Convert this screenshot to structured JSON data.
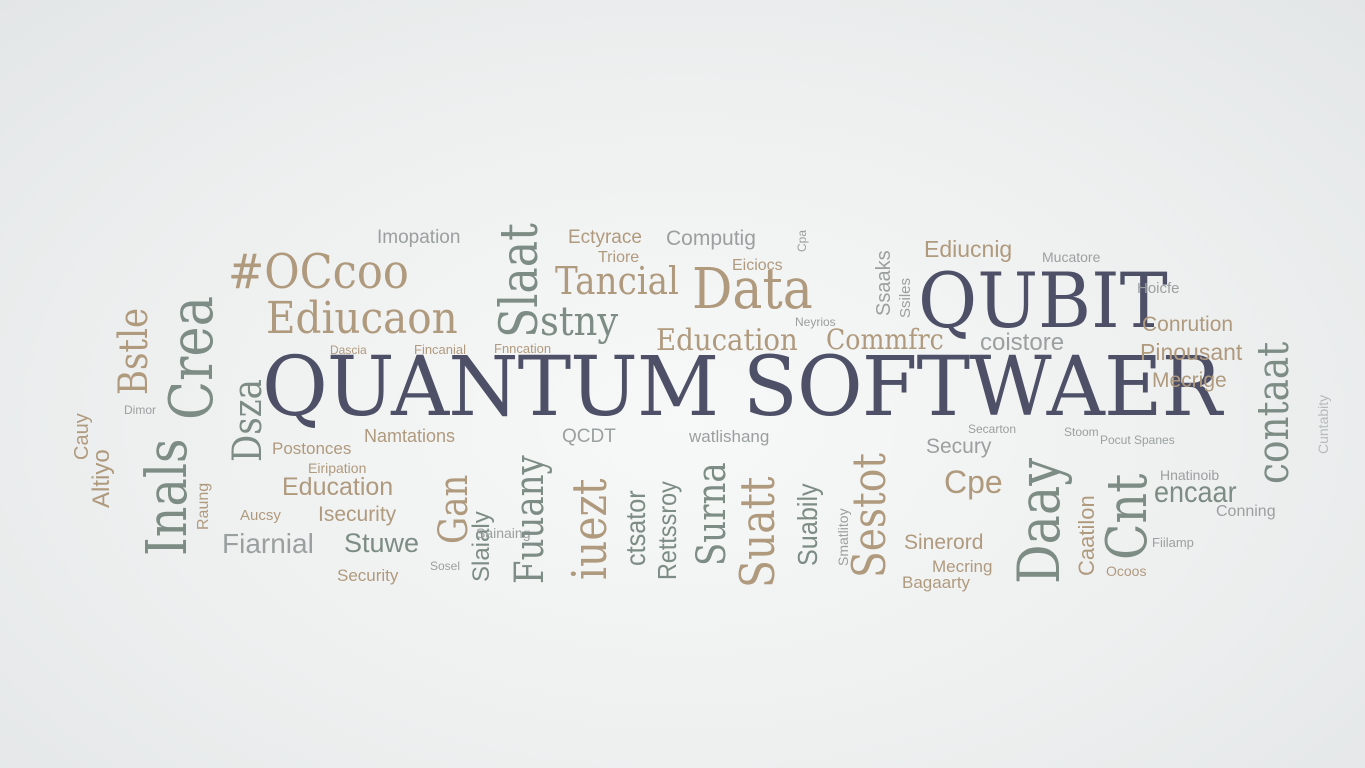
{
  "headline": "QUANTUM SOFTWAER",
  "qubit": "QUBIT",
  "words": {
    "oc": "#OCcoo",
    "eduacon": "Ediucaon",
    "slaat": "Slaat",
    "tancial": "Tancial",
    "data": "Data",
    "stny": "stny",
    "imopation": "Imopation",
    "ectyrace": "Ectyrace",
    "computing": "Computig",
    "triore": "Triore",
    "eiciocs": "Eiciocs",
    "ediucnig": "Ediucnig",
    "mucatore": "Mucatore",
    "hoicfe": "Hoicfe",
    "conrution": "Conrution",
    "pinousant": "Pinousant",
    "mecrige": "Mecrige",
    "contaat": "contaat",
    "costure": "coistore",
    "education2": "Education",
    "commfrc": "Commfrc",
    "dascia": "Dascia",
    "fincanial": "Fincanial",
    "fnncation": "Fnncation",
    "nsatations": "Namtations",
    "postonces": "Postonces",
    "education3": "Education",
    "isecurity": "Isecurity",
    "fiarnial": "Fiarnial",
    "stuwe": "Stuwe",
    "security_low": "Security",
    "security_mid": "Security",
    "security_top": "Secury",
    "fuuany": "Fuuany",
    "iuezt": "iuezt",
    "ctsator": "ctsator",
    "rettssroy": "Rettssroy",
    "surna": "Surna",
    "suatt": "Suatt",
    "suabily": "Suabily",
    "sestot": "Sestot",
    "secury2": "Secury",
    "dady": "Daay",
    "cnt": "Cnt",
    "encaar": "encaar",
    "conning": "Conning",
    "sinerord": "Sinerord",
    "mecring": "Mecring",
    "bagaarty": "Bagaarty",
    "ocoos": "Ocoos",
    "qcdt": "QCDT",
    "watlishang": "watlishang",
    "inals": "Inals",
    "crea": "Crea",
    "bstle": "Bstle",
    "dsza": "Dsza",
    "altiyo": "Altiyo",
    "cauy": "Cauy",
    "raung": "Raung",
    "aucsy": "Aucsy",
    "dimor": "Dimor",
    "gan": "Gan",
    "slaialy": "Slaialy",
    "sainaing": "Sainaing",
    "fiilamp": "Fiilamp",
    "caatilon": "Caatilon",
    "nswipes": "Neyrios",
    "hnatinoib": "Hnatinoib",
    "secarton": "Secarton",
    "stoom": "Stoom",
    "pocut": "Pocut",
    "cuntabity": "Cuntabity",
    "spanes": "Spanes",
    "unifactions": "Eiripation",
    "smatlitoy": "Smatlitoy",
    "ssaaks": "Ssaaks",
    "sstgles": "Ssiles",
    "cpe": "Cpe",
    "cpa": "Cpa",
    "sosel": "Sosel"
  }
}
